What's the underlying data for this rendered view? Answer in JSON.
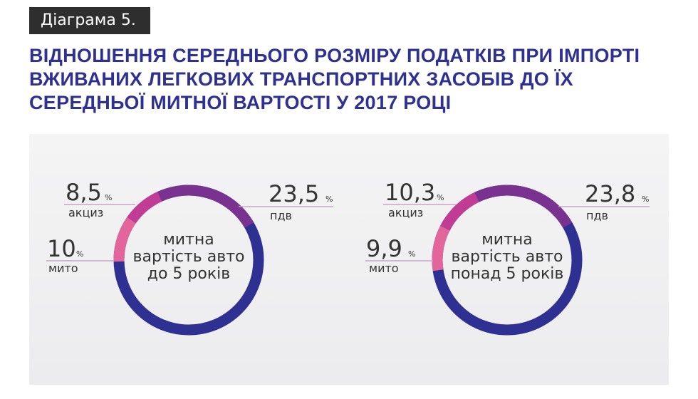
{
  "header": {
    "badge": "Діаграма 5.",
    "title_lines": [
      "ВІДНОШЕННЯ СЕРЕДНЬОГО РОЗМІРУ ПОДАТКІВ ПРИ ІМПОРТІ",
      "ВЖИВАНИХ ЛЕГКОВИХ ТРАНСПОРТНИХ ЗАСОБІВ ДО ЇХ",
      "СЕРЕДНЬОЇ МИТНОЇ ВАРТОСТІ У 2017 РОЦІ"
    ]
  },
  "colors": {
    "base": "#2f3192",
    "pdv": "#7a3290",
    "akcyz": "#c13c95",
    "myto": "#e2669b",
    "leader": "#c9a3c9",
    "text": "#333333"
  },
  "chart_data": [
    {
      "type": "pie",
      "center_label": [
        "митна",
        "вартість авто",
        "до 5 років"
      ],
      "slices": [
        {
          "key": "pdv",
          "value": "23,5",
          "unit": "%",
          "label": "пдв",
          "pct": 23.5
        },
        {
          "key": "akcyz",
          "value": "8,5",
          "unit": "%",
          "label": "акциз",
          "pct": 8.5
        },
        {
          "key": "myto",
          "value": "10",
          "unit": "%",
          "label": "мито",
          "pct": 10
        }
      ]
    },
    {
      "type": "pie",
      "center_label": [
        "митна",
        "вартість авто",
        "понад 5 років"
      ],
      "slices": [
        {
          "key": "pdv",
          "value": "23,8",
          "unit": "%",
          "label": "пдв",
          "pct": 23.8
        },
        {
          "key": "akcyz",
          "value": "10,3",
          "unit": "%",
          "label": "акциз",
          "pct": 10.3
        },
        {
          "key": "myto",
          "value": "9,9",
          "unit": "%",
          "label": "мито",
          "pct": 9.9
        }
      ]
    }
  ]
}
